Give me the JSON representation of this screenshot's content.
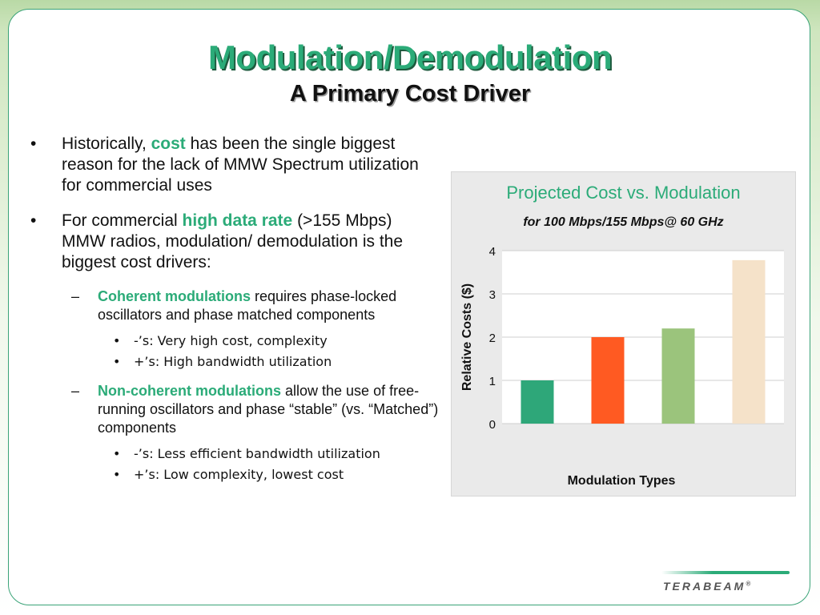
{
  "title": "Modulation/Demodulation",
  "subtitle": "A Primary Cost Driver",
  "bullets": [
    {
      "marker": "•",
      "before": "Historically, ",
      "highlight": "cost",
      "after": " has been the single biggest reason for the lack of MMW Spectrum utilization for commercial uses"
    },
    {
      "marker": "•",
      "before": "For commercial ",
      "highlight": "high data rate",
      "after": " (>155 Mbps) MMW radios, modulation/ demodulation is the biggest cost drivers:"
    }
  ],
  "subbullets": [
    {
      "marker": "–",
      "highlight": "Coherent modulations",
      "after": " requires phase-locked oscillators and phase matched components",
      "items": [
        "-’s:  Very high cost, complexity",
        "+’s:  High bandwidth utilization"
      ]
    },
    {
      "marker": "–",
      "highlight": "Non-coherent modulations",
      "after": " allow the use of free-running oscillators and phase “stable” (vs. “Matched”) components",
      "items": [
        "-’s: Less efficient bandwidth utilization",
        "+’s: Low complexity, lowest cost"
      ]
    }
  ],
  "chart_data": {
    "type": "bar",
    "title": "Projected Cost vs. Modulation",
    "subtitle": "for 100 Mbps/155 Mbps@ 60 GHz",
    "xlabel": "Modulation Types",
    "ylabel": "Relative Costs ($)",
    "ylim": [
      0,
      4
    ],
    "yticks": [
      "0",
      "1",
      "2",
      "3",
      "4"
    ],
    "categories": [
      "",
      "",
      "",
      ""
    ],
    "values": [
      1.0,
      2.0,
      2.2,
      3.78
    ],
    "colors": [
      "#2ea779",
      "#ff5a22",
      "#9bc47c",
      "#f5e2c9"
    ],
    "grid": true,
    "legend": "none"
  },
  "logo": {
    "text": "TERABEAM",
    "mark": "®"
  }
}
